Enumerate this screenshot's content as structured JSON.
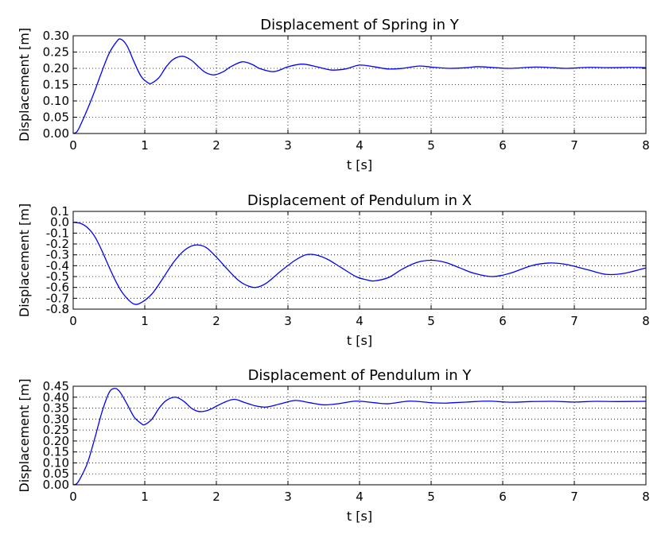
{
  "chart_data": [
    {
      "type": "line",
      "title": "Displacement of Spring in Y",
      "xlabel": "t [s]",
      "ylabel": "Displacement [m]",
      "xlim": [
        0,
        8
      ],
      "ylim": [
        0,
        0.3
      ],
      "xticks": [
        "0",
        "1",
        "2",
        "3",
        "4",
        "5",
        "6",
        "7",
        "8"
      ],
      "yticks": [
        "0.00",
        "0.05",
        "0.10",
        "0.15",
        "0.20",
        "0.25",
        "0.30"
      ],
      "grid": true,
      "color": "#0000ff",
      "series": [
        {
          "x": [
            0,
            0.05,
            0.1,
            0.2,
            0.3,
            0.4,
            0.5,
            0.6,
            0.66,
            0.75,
            0.85,
            0.95,
            1.05,
            1.1,
            1.2,
            1.3,
            1.4,
            1.53,
            1.65,
            1.75,
            1.85,
            1.97,
            2.1,
            2.2,
            2.36,
            2.5,
            2.6,
            2.78,
            2.9,
            3.0,
            3.2,
            3.4,
            3.6,
            3.8,
            4.0,
            4.2,
            4.4,
            4.6,
            4.83,
            5.0,
            5.25,
            5.5,
            5.65,
            5.9,
            6.1,
            6.45,
            6.7,
            6.9,
            7.2,
            7.5,
            7.8,
            8.0
          ],
          "y": [
            0.0,
            0.005,
            0.025,
            0.075,
            0.13,
            0.19,
            0.245,
            0.28,
            0.29,
            0.27,
            0.22,
            0.175,
            0.155,
            0.155,
            0.172,
            0.205,
            0.228,
            0.237,
            0.225,
            0.205,
            0.187,
            0.18,
            0.19,
            0.205,
            0.22,
            0.212,
            0.2,
            0.19,
            0.196,
            0.205,
            0.213,
            0.205,
            0.195,
            0.198,
            0.21,
            0.205,
            0.198,
            0.2,
            0.207,
            0.204,
            0.2,
            0.202,
            0.205,
            0.202,
            0.2,
            0.204,
            0.202,
            0.2,
            0.203,
            0.202,
            0.203,
            0.202
          ]
        }
      ]
    },
    {
      "type": "line",
      "title": "Displacement of Pendulum in X",
      "xlabel": "t [s]",
      "ylabel": "Displacement [m]",
      "xlim": [
        0,
        8
      ],
      "ylim": [
        -0.8,
        0.1
      ],
      "xticks": [
        "0",
        "1",
        "2",
        "3",
        "4",
        "5",
        "6",
        "7",
        "8"
      ],
      "yticks": [
        "-0.8",
        "-0.7",
        "-0.6",
        "-0.5",
        "-0.4",
        "-0.3",
        "-0.2",
        "-0.1",
        "0.0",
        "0.1"
      ],
      "grid": true,
      "color": "#0000ff",
      "series": [
        {
          "x": [
            0,
            0.1,
            0.2,
            0.3,
            0.4,
            0.5,
            0.6,
            0.7,
            0.84,
            0.95,
            1.1,
            1.25,
            1.4,
            1.55,
            1.7,
            1.85,
            2.0,
            2.15,
            2.3,
            2.42,
            2.55,
            2.7,
            2.9,
            3.1,
            3.25,
            3.38,
            3.55,
            3.75,
            3.95,
            4.1,
            4.2,
            4.4,
            4.6,
            4.8,
            5.0,
            5.2,
            5.4,
            5.6,
            5.85,
            6.1,
            6.4,
            6.65,
            6.9,
            7.2,
            7.45,
            7.7,
            8.0
          ],
          "y": [
            0.0,
            -0.01,
            -0.05,
            -0.13,
            -0.26,
            -0.41,
            -0.55,
            -0.66,
            -0.75,
            -0.74,
            -0.66,
            -0.52,
            -0.37,
            -0.26,
            -0.21,
            -0.23,
            -0.32,
            -0.43,
            -0.53,
            -0.58,
            -0.6,
            -0.56,
            -0.45,
            -0.35,
            -0.3,
            -0.3,
            -0.34,
            -0.42,
            -0.5,
            -0.53,
            -0.54,
            -0.51,
            -0.43,
            -0.37,
            -0.35,
            -0.37,
            -0.42,
            -0.47,
            -0.5,
            -0.47,
            -0.4,
            -0.375,
            -0.39,
            -0.44,
            -0.48,
            -0.47,
            -0.42
          ]
        }
      ]
    },
    {
      "type": "line",
      "title": "Displacement of Pendulum in Y",
      "xlabel": "t [s]",
      "ylabel": "Displacement [m]",
      "xlim": [
        0,
        8
      ],
      "ylim": [
        0,
        0.45
      ],
      "xticks": [
        "0",
        "1",
        "2",
        "3",
        "4",
        "5",
        "6",
        "7",
        "8"
      ],
      "yticks": [
        "0.00",
        "0.05",
        "0.10",
        "0.15",
        "0.20",
        "0.25",
        "0.30",
        "0.35",
        "0.40",
        "0.45"
      ],
      "grid": true,
      "color": "#0000ff",
      "series": [
        {
          "x": [
            0,
            0.05,
            0.1,
            0.2,
            0.3,
            0.4,
            0.5,
            0.58,
            0.65,
            0.75,
            0.85,
            0.95,
            1.0,
            1.1,
            1.2,
            1.3,
            1.43,
            1.55,
            1.65,
            1.75,
            1.85,
            1.95,
            2.1,
            2.25,
            2.4,
            2.55,
            2.7,
            2.9,
            3.1,
            3.3,
            3.5,
            3.7,
            3.95,
            4.2,
            4.4,
            4.7,
            5.0,
            5.2,
            5.5,
            5.8,
            6.1,
            6.4,
            6.7,
            7.0,
            7.3,
            7.6,
            8.0
          ],
          "y": [
            0.0,
            0.005,
            0.03,
            0.1,
            0.21,
            0.33,
            0.42,
            0.44,
            0.425,
            0.37,
            0.31,
            0.28,
            0.275,
            0.3,
            0.35,
            0.385,
            0.4,
            0.38,
            0.35,
            0.335,
            0.337,
            0.35,
            0.375,
            0.39,
            0.375,
            0.36,
            0.355,
            0.37,
            0.385,
            0.375,
            0.365,
            0.37,
            0.382,
            0.375,
            0.37,
            0.382,
            0.375,
            0.373,
            0.378,
            0.382,
            0.377,
            0.38,
            0.381,
            0.378,
            0.381,
            0.38,
            0.381
          ]
        }
      ]
    }
  ]
}
